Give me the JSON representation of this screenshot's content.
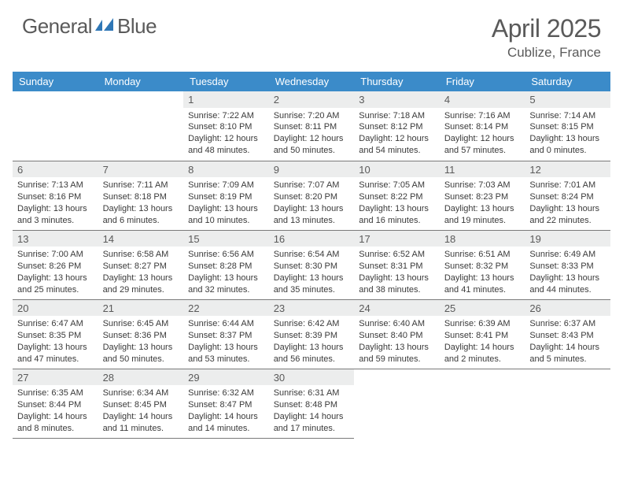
{
  "brand": {
    "text1": "General",
    "text2": "Blue"
  },
  "title": {
    "month": "April 2025",
    "location": "Cublize, France"
  },
  "colors": {
    "header_bg": "#3b8bc9",
    "header_text": "#ffffff",
    "daynum_bg": "#eceded",
    "text": "#5a5a5a",
    "border": "#7a7a7a",
    "logo_blue": "#2f77b6"
  },
  "weekdays": [
    "Sunday",
    "Monday",
    "Tuesday",
    "Wednesday",
    "Thursday",
    "Friday",
    "Saturday"
  ],
  "weeks": [
    [
      null,
      null,
      {
        "n": "1",
        "sr": "7:22 AM",
        "ss": "8:10 PM",
        "dl": "12 hours and 48 minutes."
      },
      {
        "n": "2",
        "sr": "7:20 AM",
        "ss": "8:11 PM",
        "dl": "12 hours and 50 minutes."
      },
      {
        "n": "3",
        "sr": "7:18 AM",
        "ss": "8:12 PM",
        "dl": "12 hours and 54 minutes."
      },
      {
        "n": "4",
        "sr": "7:16 AM",
        "ss": "8:14 PM",
        "dl": "12 hours and 57 minutes."
      },
      {
        "n": "5",
        "sr": "7:14 AM",
        "ss": "8:15 PM",
        "dl": "13 hours and 0 minutes."
      }
    ],
    [
      {
        "n": "6",
        "sr": "7:13 AM",
        "ss": "8:16 PM",
        "dl": "13 hours and 3 minutes."
      },
      {
        "n": "7",
        "sr": "7:11 AM",
        "ss": "8:18 PM",
        "dl": "13 hours and 6 minutes."
      },
      {
        "n": "8",
        "sr": "7:09 AM",
        "ss": "8:19 PM",
        "dl": "13 hours and 10 minutes."
      },
      {
        "n": "9",
        "sr": "7:07 AM",
        "ss": "8:20 PM",
        "dl": "13 hours and 13 minutes."
      },
      {
        "n": "10",
        "sr": "7:05 AM",
        "ss": "8:22 PM",
        "dl": "13 hours and 16 minutes."
      },
      {
        "n": "11",
        "sr": "7:03 AM",
        "ss": "8:23 PM",
        "dl": "13 hours and 19 minutes."
      },
      {
        "n": "12",
        "sr": "7:01 AM",
        "ss": "8:24 PM",
        "dl": "13 hours and 22 minutes."
      }
    ],
    [
      {
        "n": "13",
        "sr": "7:00 AM",
        "ss": "8:26 PM",
        "dl": "13 hours and 25 minutes."
      },
      {
        "n": "14",
        "sr": "6:58 AM",
        "ss": "8:27 PM",
        "dl": "13 hours and 29 minutes."
      },
      {
        "n": "15",
        "sr": "6:56 AM",
        "ss": "8:28 PM",
        "dl": "13 hours and 32 minutes."
      },
      {
        "n": "16",
        "sr": "6:54 AM",
        "ss": "8:30 PM",
        "dl": "13 hours and 35 minutes."
      },
      {
        "n": "17",
        "sr": "6:52 AM",
        "ss": "8:31 PM",
        "dl": "13 hours and 38 minutes."
      },
      {
        "n": "18",
        "sr": "6:51 AM",
        "ss": "8:32 PM",
        "dl": "13 hours and 41 minutes."
      },
      {
        "n": "19",
        "sr": "6:49 AM",
        "ss": "8:33 PM",
        "dl": "13 hours and 44 minutes."
      }
    ],
    [
      {
        "n": "20",
        "sr": "6:47 AM",
        "ss": "8:35 PM",
        "dl": "13 hours and 47 minutes."
      },
      {
        "n": "21",
        "sr": "6:45 AM",
        "ss": "8:36 PM",
        "dl": "13 hours and 50 minutes."
      },
      {
        "n": "22",
        "sr": "6:44 AM",
        "ss": "8:37 PM",
        "dl": "13 hours and 53 minutes."
      },
      {
        "n": "23",
        "sr": "6:42 AM",
        "ss": "8:39 PM",
        "dl": "13 hours and 56 minutes."
      },
      {
        "n": "24",
        "sr": "6:40 AM",
        "ss": "8:40 PM",
        "dl": "13 hours and 59 minutes."
      },
      {
        "n": "25",
        "sr": "6:39 AM",
        "ss": "8:41 PM",
        "dl": "14 hours and 2 minutes."
      },
      {
        "n": "26",
        "sr": "6:37 AM",
        "ss": "8:43 PM",
        "dl": "14 hours and 5 minutes."
      }
    ],
    [
      {
        "n": "27",
        "sr": "6:35 AM",
        "ss": "8:44 PM",
        "dl": "14 hours and 8 minutes."
      },
      {
        "n": "28",
        "sr": "6:34 AM",
        "ss": "8:45 PM",
        "dl": "14 hours and 11 minutes."
      },
      {
        "n": "29",
        "sr": "6:32 AM",
        "ss": "8:47 PM",
        "dl": "14 hours and 14 minutes."
      },
      {
        "n": "30",
        "sr": "6:31 AM",
        "ss": "8:48 PM",
        "dl": "14 hours and 17 minutes."
      },
      null,
      null,
      null
    ]
  ],
  "labels": {
    "sunrise": "Sunrise:",
    "sunset": "Sunset:",
    "daylight": "Daylight:"
  }
}
